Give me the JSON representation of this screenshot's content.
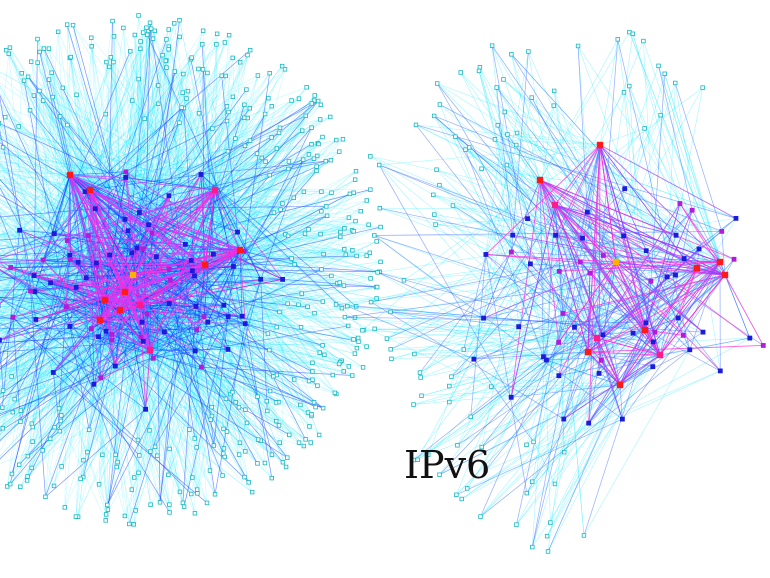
{
  "graphs": [
    {
      "id": "left-network",
      "label": "",
      "edge_colors": [
        "#00e5ff",
        "#1e3cff",
        "#d63cff",
        "#ff2bd6"
      ],
      "node_colors": [
        "#12b9c2",
        "#1b1bd9",
        "#b31bd9",
        "#ff1a8c",
        "#ff1a1a",
        "#ffb000"
      ]
    },
    {
      "id": "right-network",
      "label": "IPv6",
      "edge_colors": [
        "#00e5ff",
        "#3b6bff",
        "#9b3cff",
        "#ff2bd6"
      ],
      "node_colors": [
        "#12b9c2",
        "#1b1bd9",
        "#b31bd9",
        "#ff1a8c",
        "#ff1a1a",
        "#ffb000"
      ]
    }
  ]
}
